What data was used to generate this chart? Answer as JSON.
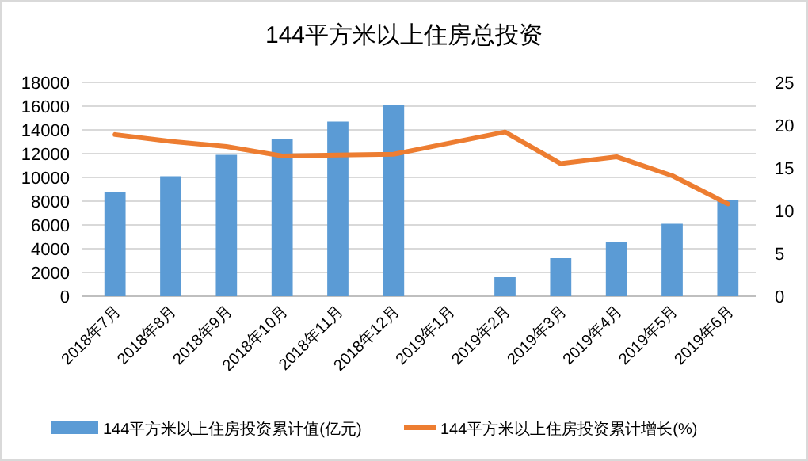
{
  "chart_data": {
    "type": "bar",
    "title": "144平方米以上住房总投资",
    "categories": [
      "2018年7月",
      "2018年8月",
      "2018年9月",
      "2018年10月",
      "2018年11月",
      "2018年12月",
      "2019年1月",
      "2019年2月",
      "2019年3月",
      "2019年4月",
      "2019年5月",
      "2019年6月"
    ],
    "series": [
      {
        "name": "144平方米以上住房投资累计值(亿元)",
        "color": "#5b9bd5",
        "values": [
          8800,
          10100,
          11900,
          13200,
          14700,
          16100,
          null,
          1600,
          3200,
          4600,
          6100,
          8100
        ]
      },
      {
        "name": "144平方米以上住房投资累计增长(%)",
        "type": "line",
        "axis": "y2",
        "color": "#ed7d31",
        "values": [
          18.9,
          18.1,
          17.5,
          16.4,
          16.5,
          16.6,
          null,
          19.2,
          15.5,
          16.3,
          14.1,
          10.8
        ]
      }
    ],
    "ylim": [
      0,
      18000
    ],
    "yticks": [
      0,
      2000,
      4000,
      6000,
      8000,
      10000,
      12000,
      14000,
      16000,
      18000
    ],
    "y2lim": [
      0,
      25
    ],
    "y2ticks": [
      0,
      5,
      10,
      15,
      20,
      25
    ],
    "grid": "y",
    "legend": "bottom",
    "marker": "none",
    "line_style": "solid"
  }
}
